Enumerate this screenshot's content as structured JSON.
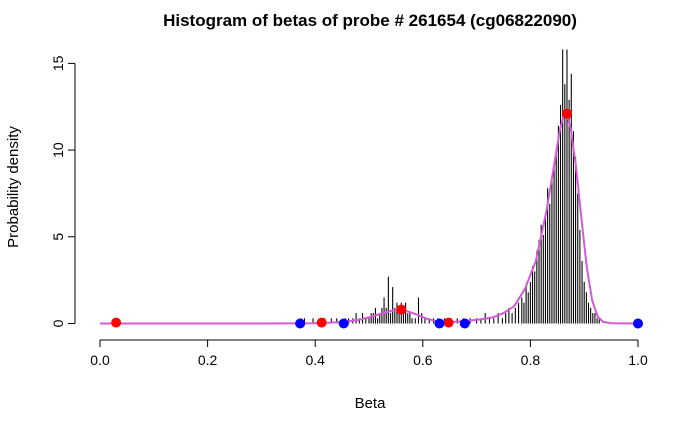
{
  "chart_data": {
    "type": "bar",
    "title": "Histogram of betas of probe # 261654 (cg06822090)",
    "xlabel": "Beta",
    "ylabel": "Probability density",
    "xlim": [
      0,
      1
    ],
    "ylim": [
      0,
      15.8
    ],
    "x_ticks": [
      {
        "value": 0.0,
        "label": "0.0"
      },
      {
        "value": 0.2,
        "label": "0.2"
      },
      {
        "value": 0.4,
        "label": "0.4"
      },
      {
        "value": 0.6,
        "label": "0.6"
      },
      {
        "value": 0.8,
        "label": "0.8"
      },
      {
        "value": 1.0,
        "label": "1.0"
      }
    ],
    "y_ticks": [
      {
        "value": 0,
        "label": "0"
      },
      {
        "value": 5,
        "label": "5"
      },
      {
        "value": 10,
        "label": "10"
      },
      {
        "value": 15,
        "label": "15"
      }
    ],
    "histogram": {
      "color": "#000000",
      "bin_width": 0.002,
      "bins": [
        [
          0.374,
          0.3
        ],
        [
          0.38,
          0.3
        ],
        [
          0.396,
          0.3
        ],
        [
          0.41,
          0.3
        ],
        [
          0.418,
          0.3
        ],
        [
          0.43,
          0.3
        ],
        [
          0.44,
          0.3
        ],
        [
          0.456,
          0.3
        ],
        [
          0.462,
          0.3
        ],
        [
          0.47,
          0.3
        ],
        [
          0.476,
          0.6
        ],
        [
          0.482,
          0.3
        ],
        [
          0.488,
          0.6
        ],
        [
          0.494,
          0.3
        ],
        [
          0.5,
          0.3
        ],
        [
          0.504,
          0.6
        ],
        [
          0.508,
          0.6
        ],
        [
          0.512,
          0.9
        ],
        [
          0.516,
          0.3
        ],
        [
          0.52,
          0.6
        ],
        [
          0.524,
          0.9
        ],
        [
          0.528,
          1.5
        ],
        [
          0.532,
          0.9
        ],
        [
          0.536,
          2.7
        ],
        [
          0.54,
          0.6
        ],
        [
          0.544,
          2.1
        ],
        [
          0.548,
          0.9
        ],
        [
          0.552,
          1.2
        ],
        [
          0.556,
          0.9
        ],
        [
          0.56,
          1.2
        ],
        [
          0.564,
          0.6
        ],
        [
          0.568,
          1.2
        ],
        [
          0.572,
          0.6
        ],
        [
          0.576,
          0.6
        ],
        [
          0.58,
          0.3
        ],
        [
          0.586,
          0.3
        ],
        [
          0.592,
          1.5
        ],
        [
          0.598,
          0.6
        ],
        [
          0.604,
          0.3
        ],
        [
          0.612,
          0.3
        ],
        [
          0.62,
          0.3
        ],
        [
          0.628,
          0.3
        ],
        [
          0.64,
          0.3
        ],
        [
          0.652,
          0.3
        ],
        [
          0.664,
          0.3
        ],
        [
          0.676,
          0.3
        ],
        [
          0.688,
          0.3
        ],
        [
          0.7,
          0.3
        ],
        [
          0.708,
          0.3
        ],
        [
          0.716,
          0.6
        ],
        [
          0.724,
          0.3
        ],
        [
          0.732,
          0.3
        ],
        [
          0.74,
          0.6
        ],
        [
          0.748,
          0.3
        ],
        [
          0.754,
          0.6
        ],
        [
          0.76,
          0.9
        ],
        [
          0.766,
          0.6
        ],
        [
          0.772,
          0.9
        ],
        [
          0.778,
          1.2
        ],
        [
          0.784,
          1.5
        ],
        [
          0.788,
          1.2
        ],
        [
          0.792,
          2.1
        ],
        [
          0.796,
          1.8
        ],
        [
          0.8,
          2.4
        ],
        [
          0.804,
          3.3
        ],
        [
          0.808,
          3.0
        ],
        [
          0.812,
          4.2
        ],
        [
          0.816,
          4.8
        ],
        [
          0.82,
          5.7
        ],
        [
          0.824,
          5.1
        ],
        [
          0.828,
          6.3
        ],
        [
          0.832,
          7.8
        ],
        [
          0.836,
          6.9
        ],
        [
          0.84,
          8.4
        ],
        [
          0.844,
          9.3
        ],
        [
          0.848,
          9.9
        ],
        [
          0.852,
          11.4
        ],
        [
          0.856,
          12.6
        ],
        [
          0.86,
          15.8
        ],
        [
          0.864,
          13.8
        ],
        [
          0.868,
          15.8
        ],
        [
          0.872,
          12.9
        ],
        [
          0.876,
          14.4
        ],
        [
          0.88,
          11.1
        ],
        [
          0.884,
          9.6
        ],
        [
          0.888,
          7.5
        ],
        [
          0.892,
          5.4
        ],
        [
          0.896,
          3.6
        ],
        [
          0.9,
          2.4
        ],
        [
          0.904,
          1.8
        ],
        [
          0.908,
          1.2
        ],
        [
          0.912,
          0.9
        ],
        [
          0.916,
          0.6
        ],
        [
          0.92,
          0.6
        ],
        [
          0.924,
          0.3
        ],
        [
          0.928,
          0.3
        ]
      ]
    },
    "density_curve": {
      "color": "#d35bd6",
      "points": [
        [
          0.0,
          0.0
        ],
        [
          0.3,
          0.0
        ],
        [
          0.4,
          0.02
        ],
        [
          0.45,
          0.08
        ],
        [
          0.48,
          0.2
        ],
        [
          0.5,
          0.35
        ],
        [
          0.52,
          0.55
        ],
        [
          0.54,
          0.72
        ],
        [
          0.555,
          0.8
        ],
        [
          0.57,
          0.72
        ],
        [
          0.59,
          0.5
        ],
        [
          0.61,
          0.25
        ],
        [
          0.63,
          0.1
        ],
        [
          0.65,
          0.08
        ],
        [
          0.67,
          0.12
        ],
        [
          0.69,
          0.18
        ],
        [
          0.71,
          0.25
        ],
        [
          0.73,
          0.35
        ],
        [
          0.75,
          0.6
        ],
        [
          0.77,
          1.0
        ],
        [
          0.79,
          2.0
        ],
        [
          0.81,
          3.6
        ],
        [
          0.83,
          6.5
        ],
        [
          0.845,
          9.3
        ],
        [
          0.855,
          11.2
        ],
        [
          0.862,
          12.0
        ],
        [
          0.868,
          12.0
        ],
        [
          0.875,
          11.2
        ],
        [
          0.885,
          9.0
        ],
        [
          0.895,
          6.0
        ],
        [
          0.905,
          3.2
        ],
        [
          0.915,
          1.3
        ],
        [
          0.925,
          0.4
        ],
        [
          0.935,
          0.1
        ],
        [
          0.95,
          0.02
        ],
        [
          1.0,
          0.0
        ]
      ]
    },
    "red_points": {
      "color": "#ff0000",
      "points": [
        [
          0.03,
          0.05
        ],
        [
          0.412,
          0.05
        ],
        [
          0.56,
          0.8
        ],
        [
          0.648,
          0.05
        ],
        [
          0.868,
          12.1
        ]
      ]
    },
    "blue_points": {
      "color": "#0000ff",
      "points": [
        [
          0.372,
          0.0
        ],
        [
          0.453,
          0.0
        ],
        [
          0.631,
          0.0
        ],
        [
          0.678,
          0.0
        ],
        [
          1.0,
          0.0
        ]
      ]
    },
    "grid": false,
    "legend": "none"
  }
}
